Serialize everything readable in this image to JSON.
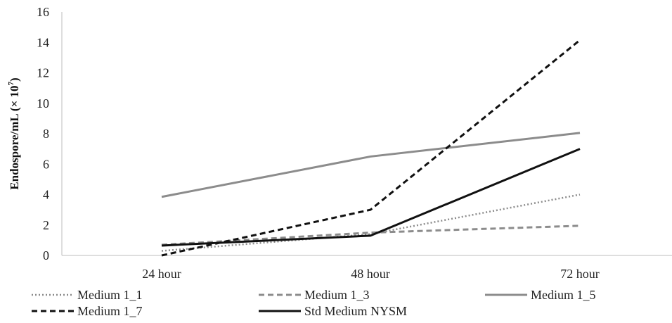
{
  "chart_data": {
    "type": "line",
    "title": "",
    "xlabel": "",
    "ylabel": "Endospore/mL (× 10",
    "ylabel_exponent": "7",
    "ylabel_suffix": ")",
    "categories": [
      "24 hour",
      "48 hour",
      "72 hour"
    ],
    "ylim": [
      0,
      16
    ],
    "yticks": [
      0,
      2,
      4,
      6,
      8,
      10,
      12,
      14,
      16
    ],
    "grid": false,
    "legend_position": "bottom",
    "series": [
      {
        "name": "Medium 1_1",
        "values": [
          0.3,
          1.4,
          4.0
        ],
        "color": "#8c8c8c",
        "style": "dotted"
      },
      {
        "name": "Medium 1_3",
        "values": [
          0.7,
          1.5,
          1.95
        ],
        "color": "#8c8c8c",
        "style": "dashed"
      },
      {
        "name": "Medium 1_5",
        "values": [
          3.85,
          6.5,
          8.05
        ],
        "color": "#8c8c8c",
        "style": "solid"
      },
      {
        "name": "Medium 1_7",
        "values": [
          0.0,
          3.0,
          14.15
        ],
        "color": "#111111",
        "style": "dashed"
      },
      {
        "name": "Std Medium NYSM",
        "values": [
          0.65,
          1.3,
          7.0
        ],
        "color": "#111111",
        "style": "solid"
      }
    ]
  }
}
